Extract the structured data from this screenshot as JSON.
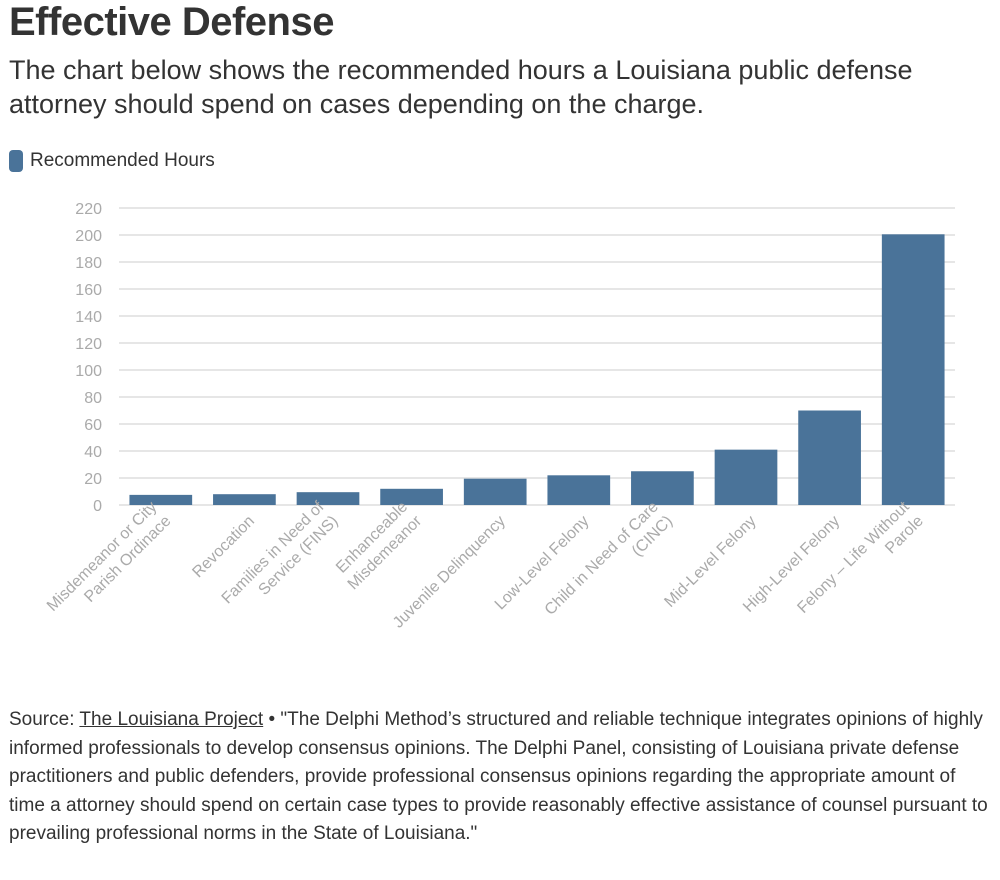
{
  "header": {
    "title": "Effective Defense",
    "subtitle": "The chart below shows the recommended hours a Louisiana public defense attorney should spend on cases depending on the charge."
  },
  "colors": {
    "bar": "#4a7399",
    "grid": "#e6e6e6",
    "tick_label": "#aaaaaa",
    "text": "#333333"
  },
  "chart_data": {
    "type": "bar",
    "title": "Effective Defense",
    "xlabel": "",
    "ylabel": "",
    "ylim": [
      0,
      220
    ],
    "yticks": [
      0,
      20,
      40,
      60,
      80,
      100,
      120,
      140,
      160,
      180,
      200,
      220
    ],
    "grid": true,
    "legend_position": "top-left",
    "categories": [
      [
        "Misdemeanor or City",
        "Parish Ordinace"
      ],
      [
        "Revocation"
      ],
      [
        "Families in Need of",
        "Service (FINS)"
      ],
      [
        "Enhanceable",
        "Misdemeanor"
      ],
      [
        "Juvenile Delinquency"
      ],
      [
        "Low-Level Felony"
      ],
      [
        "Child in Need of Care",
        "(CINC)"
      ],
      [
        "Mid-Level Felony"
      ],
      [
        "High-Level Felony"
      ],
      [
        "Felony – Life Without",
        "Parole"
      ]
    ],
    "series": [
      {
        "name": "Recommended Hours",
        "values": [
          7.5,
          8,
          9.5,
          12,
          19.5,
          22,
          25,
          41,
          70,
          200.5
        ]
      }
    ]
  },
  "footer": {
    "source_prefix": "Source: ",
    "source_link": "The Louisiana Project",
    "source_separator": " • ",
    "note": "\"The Delphi Method’s structured and reliable technique integrates opinions of highly informed professionals to develop consensus opinions. The Delphi Panel, consisting of Louisiana private defense practitioners and public defenders, provide professional consensus opinions regarding the appropriate amount of time a attorney should spend on certain case types to provide reasonably effective assistance of counsel pursuant to prevailing professional norms in the State of Louisiana.\""
  }
}
